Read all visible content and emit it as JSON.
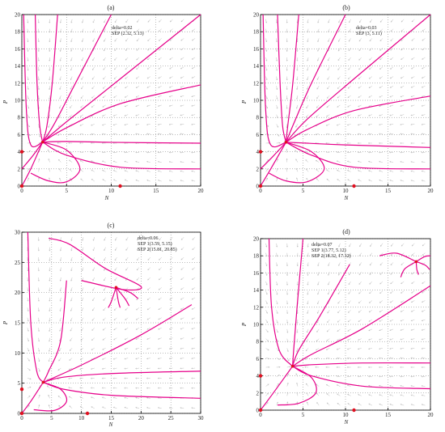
{
  "chart_data": [
    {
      "type": "phase-portrait",
      "title": "(a)",
      "xlabel": "N",
      "ylabel": "P",
      "xlim": [
        0,
        20
      ],
      "ylim": [
        0,
        20
      ],
      "xticks": [
        0,
        5,
        10,
        15,
        20
      ],
      "yticks": [
        0,
        2,
        4,
        6,
        8,
        10,
        12,
        14,
        16,
        18,
        20
      ],
      "annotations": [
        "delta=0.02",
        "SEP (2.32, 5.13)"
      ],
      "sep_points": [
        [
          2.32,
          5.13
        ]
      ],
      "axis_points": [
        [
          0,
          4
        ],
        [
          0,
          0
        ],
        [
          11,
          0
        ]
      ],
      "field": true,
      "trajectories": [
        [
          [
            1.5,
            20
          ],
          [
            1.7,
            12
          ],
          [
            2,
            7
          ],
          [
            2.32,
            5.13
          ]
        ],
        [
          [
            4,
            20
          ],
          [
            3.4,
            12
          ],
          [
            2.8,
            7
          ],
          [
            2.32,
            5.13
          ]
        ],
        [
          [
            10,
            20
          ],
          [
            6,
            12
          ],
          [
            3.6,
            7.2
          ],
          [
            2.32,
            5.13
          ]
        ],
        [
          [
            20,
            20
          ],
          [
            11,
            12.5
          ],
          [
            5,
            7.5
          ],
          [
            2.32,
            5.13
          ]
        ],
        [
          [
            20,
            11.8
          ],
          [
            11,
            9.6
          ],
          [
            5,
            6.8
          ],
          [
            2.32,
            5.13
          ]
        ],
        [
          [
            20,
            5
          ],
          [
            10,
            5.1
          ],
          [
            5,
            5.2
          ],
          [
            2.32,
            5.13
          ]
        ],
        [
          [
            20,
            2
          ],
          [
            11,
            2.2
          ],
          [
            5,
            3.6
          ],
          [
            2.32,
            5.13
          ]
        ],
        [
          [
            0.2,
            20
          ],
          [
            0.5,
            9
          ],
          [
            1,
            4.8
          ],
          [
            2.32,
            5.13
          ]
        ],
        [
          [
            0,
            0
          ],
          [
            1,
            2
          ],
          [
            2.32,
            5.13
          ]
        ],
        [
          [
            0,
            2
          ],
          [
            1.2,
            3.5
          ],
          [
            2.32,
            5.13
          ]
        ],
        [
          [
            2.32,
            5.13
          ],
          [
            5,
            4.2
          ],
          [
            6.5,
            2
          ],
          [
            5,
            0.5
          ],
          [
            3,
            0.6
          ],
          [
            1,
            1.5
          ]
        ]
      ]
    },
    {
      "type": "phase-portrait",
      "title": "(b)",
      "xlabel": "N",
      "ylabel": "P",
      "xlim": [
        0,
        20
      ],
      "ylim": [
        0,
        20
      ],
      "xticks": [
        0,
        5,
        10,
        15,
        20
      ],
      "yticks": [
        0,
        2,
        4,
        6,
        8,
        10,
        12,
        14,
        16,
        18,
        20
      ],
      "annotations": [
        "delta=0.03",
        "SEP (3, 5.11)"
      ],
      "sep_points": [
        [
          3,
          5.11
        ]
      ],
      "axis_points": [
        [
          0,
          4
        ],
        [
          0,
          0
        ],
        [
          11,
          0
        ]
      ],
      "field": true,
      "trajectories": [
        [
          [
            2,
            20
          ],
          [
            2.3,
            12
          ],
          [
            2.6,
            7
          ],
          [
            3,
            5.11
          ]
        ],
        [
          [
            4.5,
            20
          ],
          [
            3.8,
            12
          ],
          [
            3.2,
            7
          ],
          [
            3,
            5.11
          ]
        ],
        [
          [
            10,
            20
          ],
          [
            6,
            12
          ],
          [
            4,
            7.5
          ],
          [
            3,
            5.11
          ]
        ],
        [
          [
            20,
            20
          ],
          [
            11,
            12.5
          ],
          [
            5.5,
            7.8
          ],
          [
            3,
            5.11
          ]
        ],
        [
          [
            20,
            10.5
          ],
          [
            11,
            8.8
          ],
          [
            5.5,
            6.6
          ],
          [
            3,
            5.11
          ]
        ],
        [
          [
            20,
            4.5
          ],
          [
            10,
            4.8
          ],
          [
            5.5,
            5
          ],
          [
            3,
            5.11
          ]
        ],
        [
          [
            20,
            2
          ],
          [
            11,
            2.2
          ],
          [
            6,
            3.6
          ],
          [
            3,
            5.11
          ]
        ],
        [
          [
            0.3,
            20
          ],
          [
            0.6,
            9
          ],
          [
            1.2,
            4.8
          ],
          [
            3,
            5.11
          ]
        ],
        [
          [
            0,
            0
          ],
          [
            1.2,
            2
          ],
          [
            3,
            5.11
          ]
        ],
        [
          [
            0,
            2
          ],
          [
            1.5,
            3.5
          ],
          [
            3,
            5.11
          ]
        ],
        [
          [
            3,
            5.11
          ],
          [
            6,
            4
          ],
          [
            7.5,
            2
          ],
          [
            5.5,
            0.5
          ],
          [
            3,
            0.6
          ],
          [
            1,
            1.5
          ]
        ]
      ]
    },
    {
      "type": "phase-portrait",
      "title": "(c)",
      "xlabel": "N",
      "ylabel": "P",
      "xlim": [
        0,
        30
      ],
      "ylim": [
        0,
        30
      ],
      "xticks": [
        0,
        5,
        10,
        15,
        20,
        25,
        30
      ],
      "yticks": [
        0,
        5,
        10,
        15,
        20,
        25,
        30
      ],
      "annotations": [
        "delta=0.06",
        "SEP 1(3.59, 5.15)",
        "SEP 2(15.81, 20.85)"
      ],
      "sep_points": [
        [
          3.59,
          5.15
        ],
        [
          15.81,
          20.85
        ]
      ],
      "axis_points": [
        [
          0,
          4
        ],
        [
          0,
          0
        ],
        [
          11,
          0
        ]
      ],
      "field": true,
      "trajectories": [
        [
          [
            1,
            30
          ],
          [
            1.5,
            15
          ],
          [
            2.5,
            7
          ],
          [
            3.59,
            5.15
          ]
        ],
        [
          [
            4.5,
            29
          ],
          [
            8,
            28
          ],
          [
            14,
            24
          ],
          [
            20,
            21
          ],
          [
            17,
            20.5
          ],
          [
            10,
            22
          ]
        ],
        [
          [
            7.5,
            22
          ],
          [
            6.5,
            12
          ],
          [
            4.5,
            7
          ],
          [
            3.59,
            5.15
          ]
        ],
        [
          [
            28.5,
            18
          ],
          [
            20,
            13
          ],
          [
            10,
            8
          ],
          [
            3.59,
            5.15
          ]
        ],
        [
          [
            30,
            7
          ],
          [
            15,
            6.6
          ],
          [
            7,
            6
          ],
          [
            3.59,
            5.15
          ]
        ],
        [
          [
            30,
            2.5
          ],
          [
            15,
            3
          ],
          [
            7,
            4
          ],
          [
            3.59,
            5.15
          ]
        ],
        [
          [
            0,
            0
          ],
          [
            1.5,
            2
          ],
          [
            3.59,
            5.15
          ]
        ],
        [
          [
            3.59,
            5.15
          ],
          [
            6.5,
            4
          ],
          [
            7.5,
            2
          ],
          [
            5.5,
            0.5
          ],
          [
            2,
            0.6
          ]
        ],
        [
          [
            15.81,
            20.85
          ],
          [
            15,
            18.5
          ],
          [
            14.5,
            17.5
          ]
        ],
        [
          [
            15.81,
            20.85
          ],
          [
            16.2,
            18.5
          ],
          [
            16.5,
            17.5
          ]
        ],
        [
          [
            15.81,
            20.85
          ],
          [
            17.3,
            19
          ],
          [
            18,
            17.8
          ]
        ],
        [
          [
            15.81,
            20.85
          ],
          [
            18.2,
            20
          ],
          [
            19.5,
            19
          ]
        ]
      ]
    },
    {
      "type": "phase-portrait",
      "title": "(d)",
      "xlabel": "N",
      "ylabel": "P",
      "xlim": [
        0,
        20
      ],
      "ylim": [
        0,
        20
      ],
      "xticks": [
        0,
        5,
        10,
        15,
        20
      ],
      "yticks": [
        0,
        2,
        4,
        6,
        8,
        10,
        12,
        14,
        16,
        18,
        20
      ],
      "annotations": [
        "delta=0.07",
        "SEP 1(3.77, 5.12)",
        "SEP 2(18.32, 17.32)"
      ],
      "sep_points": [
        [
          3.77,
          5.12
        ],
        [
          18.32,
          17.32
        ]
      ],
      "axis_points": [
        [
          0,
          4
        ],
        [
          0,
          0
        ],
        [
          11,
          0
        ]
      ],
      "field": true,
      "trajectories": [
        [
          [
            1,
            20
          ],
          [
            1.3,
            12
          ],
          [
            2.2,
            7
          ],
          [
            3.77,
            5.12
          ]
        ],
        [
          [
            5,
            20
          ],
          [
            4.3,
            12
          ],
          [
            3.9,
            7
          ],
          [
            3.77,
            5.12
          ]
        ],
        [
          [
            10.5,
            17
          ],
          [
            7,
            11
          ],
          [
            4.5,
            7
          ],
          [
            3.77,
            5.12
          ]
        ],
        [
          [
            20,
            14.5
          ],
          [
            12,
            9.5
          ],
          [
            6,
            6.5
          ],
          [
            3.77,
            5.12
          ]
        ],
        [
          [
            20,
            5.5
          ],
          [
            12,
            5.5
          ],
          [
            6,
            5.3
          ],
          [
            3.77,
            5.12
          ]
        ],
        [
          [
            20,
            2.5
          ],
          [
            12,
            2.8
          ],
          [
            6,
            4
          ],
          [
            3.77,
            5.12
          ]
        ],
        [
          [
            0,
            0
          ],
          [
            1.5,
            2
          ],
          [
            3.77,
            5.12
          ]
        ],
        [
          [
            3.77,
            5.12
          ],
          [
            6,
            3.8
          ],
          [
            6.5,
            2
          ],
          [
            4.5,
            0.8
          ],
          [
            2,
            0.6
          ]
        ],
        [
          [
            14,
            18
          ],
          [
            16,
            18.3
          ],
          [
            18.32,
            17.32
          ]
        ],
        [
          [
            18.32,
            17.32
          ],
          [
            17,
            16.5
          ],
          [
            16.5,
            15.5
          ]
        ],
        [
          [
            18.32,
            17.32
          ],
          [
            18.4,
            16.4
          ],
          [
            18.6,
            15.8
          ]
        ],
        [
          [
            18.32,
            17.32
          ],
          [
            19.4,
            16.9
          ],
          [
            19.9,
            16.4
          ]
        ],
        [
          [
            18.32,
            17.32
          ],
          [
            19.3,
            17.9
          ],
          [
            20,
            18
          ]
        ]
      ]
    }
  ]
}
